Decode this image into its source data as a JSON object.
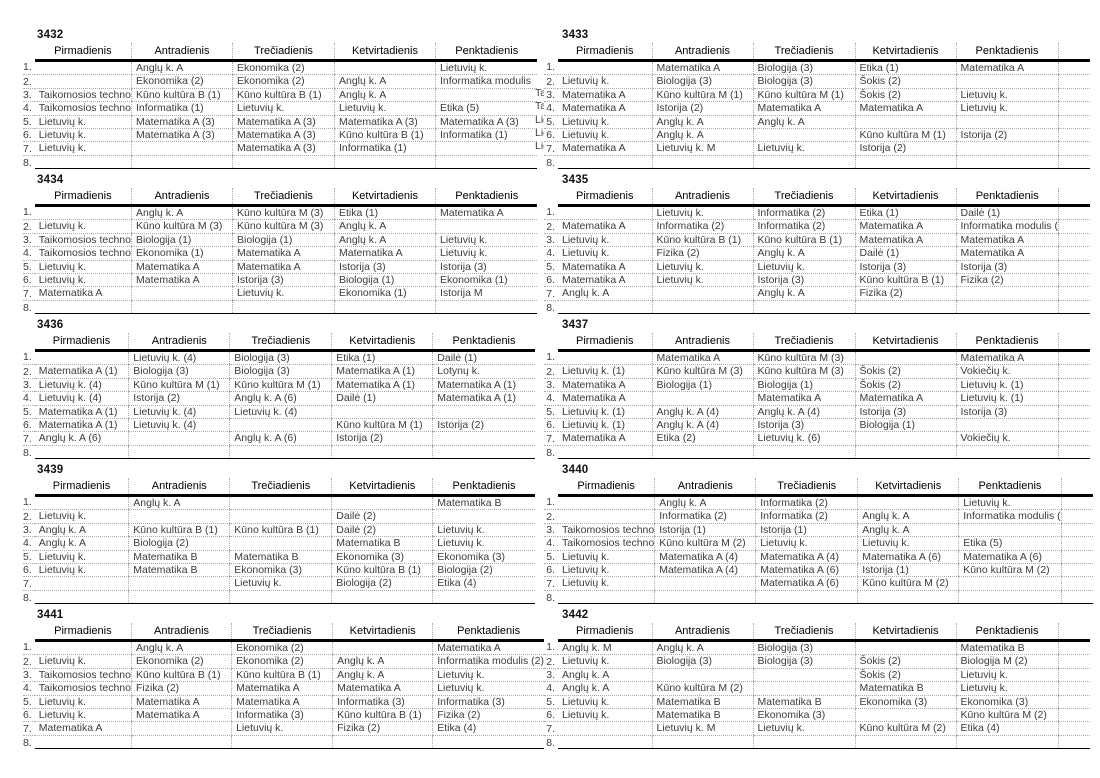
{
  "days_header": [
    "Pirmadienis",
    "Antradienis",
    "Trečiadienis",
    "Ketvirtadienis",
    "Penktadienis"
  ],
  "row_numbers": [
    "1.",
    "2.",
    "3.",
    "4.",
    "5.",
    "6.",
    "7.",
    "8."
  ],
  "colors": {
    "heavy_line": "#000000",
    "dotted_grid": "#ababab",
    "cell_text": "#3d3d3d",
    "header_text": "#000000"
  },
  "timetables": [
    {
      "id": "3432",
      "rows": [
        [
          "",
          "Anglų k. A",
          "Ekonomika (2)",
          "",
          "Lietuvių k."
        ],
        [
          "",
          "Ekonomika (2)",
          "Ekonomika (2)",
          "Anglų k. A",
          "Informatika modulis"
        ],
        [
          "Taikomosios techno",
          "Kūno kultūra B (1)",
          "Kūno kultūra B (1)",
          "Anglų k. A",
          ""
        ],
        [
          "Taikomosios techno",
          "Informatika (1)",
          "Lietuvių k.",
          "Lietuvių k.",
          "Etika (5)"
        ],
        [
          "Lietuvių k.",
          "Matematika A (3)",
          "Matematika A (3)",
          "Matematika A (3)",
          "Matematika A (3)"
        ],
        [
          "Lietuvių k.",
          "Matematika A (3)",
          "Matematika A (3)",
          "Kūno kultūra B (1)",
          "Informatika (1)"
        ],
        [
          "Lietuvių k.",
          "",
          "Matematika A (3)",
          "Informatika (1)",
          ""
        ],
        [
          "",
          "",
          "",
          "",
          ""
        ]
      ],
      "overflow_right": [
        "",
        "",
        "Ta",
        "Ta",
        "Lie",
        "Lie",
        "Lie",
        ""
      ]
    },
    {
      "id": "3433",
      "rows": [
        [
          "",
          "Matematika A",
          "Biologija (3)",
          "Etika (1)",
          "Matematika A"
        ],
        [
          "Lietuvių k.",
          "Biologija (3)",
          "Biologija (3)",
          "Šokis (2)",
          ""
        ],
        [
          "Matematika A",
          "Kūno kultūra M (1)",
          "Kūno kultūra M (1)",
          "Šokis (2)",
          "Lietuvių k."
        ],
        [
          "Matematika A",
          "Istorija (2)",
          "Matematika A",
          "Matematika A",
          "Lietuvių k."
        ],
        [
          "Lietuvių k.",
          "Anglų k. A",
          "Anglų k. A",
          "",
          ""
        ],
        [
          "Lietuvių k.",
          "Anglų k. A",
          "",
          "Kūno kultūra M (1)",
          "Istorija (2)"
        ],
        [
          "Matematika A",
          "Lietuvių k. M",
          "Lietuvių k.",
          "Istorija (2)",
          ""
        ],
        [
          "",
          "",
          "",
          "",
          ""
        ]
      ]
    },
    {
      "id": "3434",
      "rows": [
        [
          "",
          "Anglų k. A",
          "Kūno kultūra M (3)",
          "Etika (1)",
          "Matematika A"
        ],
        [
          "Lietuvių k.",
          "Kūno kultūra M (3)",
          "Kūno kultūra M (3)",
          "Anglų k. A",
          ""
        ],
        [
          "Taikomosios techno",
          "Biologija (1)",
          "Biologija (1)",
          "Anglų k. A",
          "Lietuvių k."
        ],
        [
          "Taikomosios techno",
          "Ekonomika (1)",
          "Matematika A",
          "Matematika A",
          "Lietuvių k."
        ],
        [
          "Lietuvių k.",
          "Matematika A",
          "Matematika A",
          "Istorija (3)",
          "Istorija (3)"
        ],
        [
          "Lietuvių k.",
          "Matematika A",
          "Istorija (3)",
          "Biologija (1)",
          "Ekonomika (1)"
        ],
        [
          "Matematika A",
          "",
          "Lietuvių k.",
          "Ekonomika (1)",
          "Istorija M"
        ],
        [
          "",
          "",
          "",
          "",
          ""
        ]
      ]
    },
    {
      "id": "3435",
      "rows": [
        [
          "",
          "Lietuvių k.",
          "Informatika (2)",
          "Etika (1)",
          "Dailė (1)"
        ],
        [
          "Matematika A",
          "Informatika (2)",
          "Informatika (2)",
          "Matematika A",
          "Informatika modulis ("
        ],
        [
          "Lietuvių k.",
          "Kūno kultūra B (1)",
          "Kūno kultūra B (1)",
          "Matematika A",
          "Matematika A"
        ],
        [
          "Lietuvių k.",
          "Fizika (2)",
          "Anglų k. A",
          "Dailė (1)",
          "Matematika A"
        ],
        [
          "Matematika A",
          "Lietuvių k.",
          "Lietuvių k.",
          "Istorija (3)",
          "Istorija (3)"
        ],
        [
          "Matematika A",
          "Lietuvių k.",
          "Istorija (3)",
          "Kūno kultūra B (1)",
          "Fizika (2)"
        ],
        [
          "Anglų k. A",
          "",
          "Anglų k. A",
          "Fizika (2)",
          ""
        ],
        [
          "",
          "",
          "",
          "",
          ""
        ]
      ]
    },
    {
      "id": "3436",
      "rows": [
        [
          "",
          "Lietuvių k. (4)",
          "Biologija (3)",
          "Etika (1)",
          "Dailė (1)"
        ],
        [
          "Matematika A (1)",
          "Biologija (3)",
          "Biologija (3)",
          "Matematika A (1)",
          "Lotynų k."
        ],
        [
          "Lietuvių k. (4)",
          "Kūno kultūra M (1)",
          "Kūno kultūra M (1)",
          "Matematika A (1)",
          "Matematika A (1)"
        ],
        [
          "Lietuvių k. (4)",
          "Istorija (2)",
          "Anglų k. A (6)",
          "Dailė (1)",
          "Matematika A (1)"
        ],
        [
          "Matematika A (1)",
          "Lietuvių k. (4)",
          "Lietuvių k. (4)",
          "",
          ""
        ],
        [
          "Matematika A (1)",
          "Lietuvių k. (4)",
          "",
          "Kūno kultūra M (1)",
          "Istorija (2)"
        ],
        [
          "Anglų k. A (6)",
          "",
          "Anglų k. A (6)",
          "Istorija (2)",
          ""
        ],
        [
          "",
          "",
          "",
          "",
          ""
        ]
      ]
    },
    {
      "id": "3437",
      "rows": [
        [
          "",
          "Matematika A",
          "Kūno kultūra M (3)",
          "",
          "Matematika A"
        ],
        [
          "Lietuvių k. (1)",
          "Kūno kultūra M (3)",
          "Kūno kultūra M (3)",
          "Šokis (2)",
          "Vokiečių k."
        ],
        [
          "Matematika A",
          "Biologija (1)",
          "Biologija (1)",
          "Šokis (2)",
          "Lietuvių k. (1)"
        ],
        [
          "Matematika A",
          "",
          "Matematika A",
          "Matematika A",
          "Lietuvių k. (1)"
        ],
        [
          "Lietuvių k. (1)",
          "Anglų k. A (4)",
          "Anglų k. A (4)",
          "Istorija (3)",
          "Istorija (3)"
        ],
        [
          "Lietuvių k. (1)",
          "Anglų k. A (4)",
          "Istorija (3)",
          "Biologija (1)",
          ""
        ],
        [
          "Matematika A",
          "Etika (2)",
          "Lietuvių k. (6)",
          "",
          "Vokiečių k."
        ],
        [
          "",
          "",
          "",
          "",
          ""
        ]
      ]
    },
    {
      "id": "3439",
      "rows": [
        [
          "",
          "Anglų k. A",
          "",
          "",
          "Matematika B"
        ],
        [
          "Lietuvių k.",
          "",
          "",
          "Dailė (2)",
          ""
        ],
        [
          "Anglų k. A",
          "Kūno kultūra B (1)",
          "Kūno kultūra B (1)",
          "Dailė (2)",
          "Lietuvių k."
        ],
        [
          "Anglų k. A",
          "Biologija (2)",
          "",
          "Matematika B",
          "Lietuvių k."
        ],
        [
          "Lietuvių k.",
          "Matematika B",
          "Matematika B",
          "Ekonomika (3)",
          "Ekonomika (3)"
        ],
        [
          "Lietuvių k.",
          "Matematika B",
          "Ekonomika (3)",
          "Kūno kultūra B (1)",
          "Biologija (2)"
        ],
        [
          "",
          "",
          "Lietuvių k.",
          "Biologija (2)",
          "Etika (4)"
        ],
        [
          "",
          "",
          "",
          "",
          ""
        ]
      ]
    },
    {
      "id": "3440",
      "rows": [
        [
          "",
          "Anglų k. A",
          "Informatika (2)",
          "",
          "Lietuvių k."
        ],
        [
          "",
          "Informatika (2)",
          "Informatika (2)",
          "Anglų k. A",
          "Informatika modulis ("
        ],
        [
          "Taikomosios techno",
          "Istorija (1)",
          "Istorija (1)",
          "Anglų k. A",
          ""
        ],
        [
          "Taikomosios techno",
          "Kūno kultūra M (2)",
          "Lietuvių k.",
          "Lietuvių k.",
          "Etika (5)"
        ],
        [
          "Lietuvių k.",
          "Matematika A (4)",
          "Matematika A (4)",
          "Matematika A (6)",
          "Matematika A (6)"
        ],
        [
          "Lietuvių k.",
          "Matematika A (4)",
          "Matematika A (6)",
          "Istorija (1)",
          "Kūno kultūra M (2)"
        ],
        [
          "Lietuvių k.",
          "",
          "Matematika A (6)",
          "Kūno kultūra M (2)",
          ""
        ],
        [
          "",
          "",
          "",
          "",
          ""
        ]
      ]
    },
    {
      "id": "3441",
      "rows": [
        [
          "",
          "Anglų k. A",
          "Ekonomika (2)",
          "",
          "Matematika A"
        ],
        [
          "Lietuvių k.",
          "Ekonomika (2)",
          "Ekonomika (2)",
          "Anglų k. A",
          "Informatika modulis (2)"
        ],
        [
          "Taikomosios techno",
          "Kūno kultūra B (1)",
          "Kūno kultūra B (1)",
          "Anglų k. A",
          "Lietuvių k."
        ],
        [
          "Taikomosios techno",
          "Fizika (2)",
          "Matematika A",
          "Matematika A",
          "Lietuvių k."
        ],
        [
          "Lietuvių k.",
          "Matematika A",
          "Matematika A",
          "Informatika (3)",
          "Informatika (3)"
        ],
        [
          "Lietuvių k.",
          "Matematika A",
          "Informatika (3)",
          "Kūno kultūra B (1)",
          "Fizika (2)"
        ],
        [
          "Matematika A",
          "",
          "Lietuvių k.",
          "Fizika (2)",
          "Etika (4)"
        ],
        [
          "",
          "",
          "",
          "",
          ""
        ]
      ]
    },
    {
      "id": "3442",
      "rows": [
        [
          "Anglų k. M",
          "Anglų k. A",
          "Biologija (3)",
          "",
          "Matematika B"
        ],
        [
          "Lietuvių k.",
          "Biologija (3)",
          "Biologija (3)",
          "Šokis (2)",
          "Biologija M (2)"
        ],
        [
          "Anglų k. A",
          "",
          "",
          "Šokis (2)",
          "Lietuvių k."
        ],
        [
          "Anglų k. A",
          "Kūno kultūra M (2)",
          "",
          "Matematika B",
          "Lietuvių k."
        ],
        [
          "Lietuvių k.",
          "Matematika B",
          "Matematika B",
          "Ekonomika (3)",
          "Ekonomika (3)"
        ],
        [
          "Lietuvių k.",
          "Matematika B",
          "Ekonomika (3)",
          "",
          "Kūno kultūra M (2)"
        ],
        [
          "",
          "Lietuvių k. M",
          "Lietuvių k.",
          "Kūno kultūra M (2)",
          "Etika (4)"
        ],
        [
          "",
          "",
          "",
          "",
          ""
        ]
      ]
    }
  ]
}
